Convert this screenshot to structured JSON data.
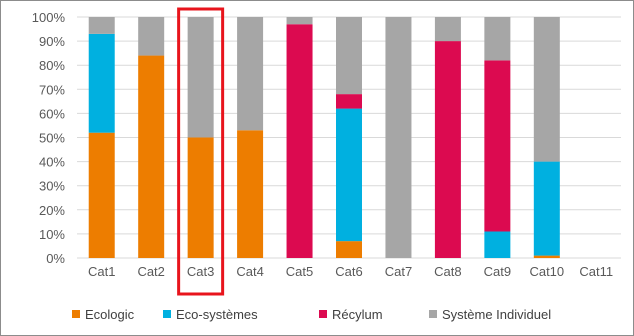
{
  "chart_data": {
    "type": "bar",
    "stacked": true,
    "categories": [
      "Cat1",
      "Cat2",
      "Cat3",
      "Cat4",
      "Cat5",
      "Cat6",
      "Cat7",
      "Cat8",
      "Cat9",
      "Cat10",
      "Cat11"
    ],
    "series": [
      {
        "name": "Ecologic",
        "color": "#ed7d00",
        "values": [
          52,
          84,
          50,
          53,
          0,
          7,
          0,
          0,
          0,
          1,
          0
        ]
      },
      {
        "name": "Eco-systèmes",
        "color": "#00b0e0",
        "values": [
          41,
          0,
          0,
          0,
          0,
          55,
          0,
          0,
          11,
          39,
          0
        ]
      },
      {
        "name": "Récylum",
        "color": "#dc0a50",
        "values": [
          0,
          0,
          0,
          0,
          97,
          6,
          0,
          90,
          71,
          0,
          0
        ]
      },
      {
        "name": "Système Individuel",
        "color": "#a6a6a6",
        "values": [
          7,
          16,
          50,
          47,
          3,
          32,
          100,
          10,
          18,
          60,
          0
        ]
      }
    ],
    "y_tick_labels": [
      "0%",
      "10%",
      "20%",
      "30%",
      "40%",
      "50%",
      "60%",
      "70%",
      "80%",
      "90%",
      "100%"
    ],
    "ylim": [
      0,
      100
    ],
    "grid": true,
    "legend": "bottom",
    "highlight": {
      "category": "Cat3",
      "color": "#e8141c"
    }
  }
}
